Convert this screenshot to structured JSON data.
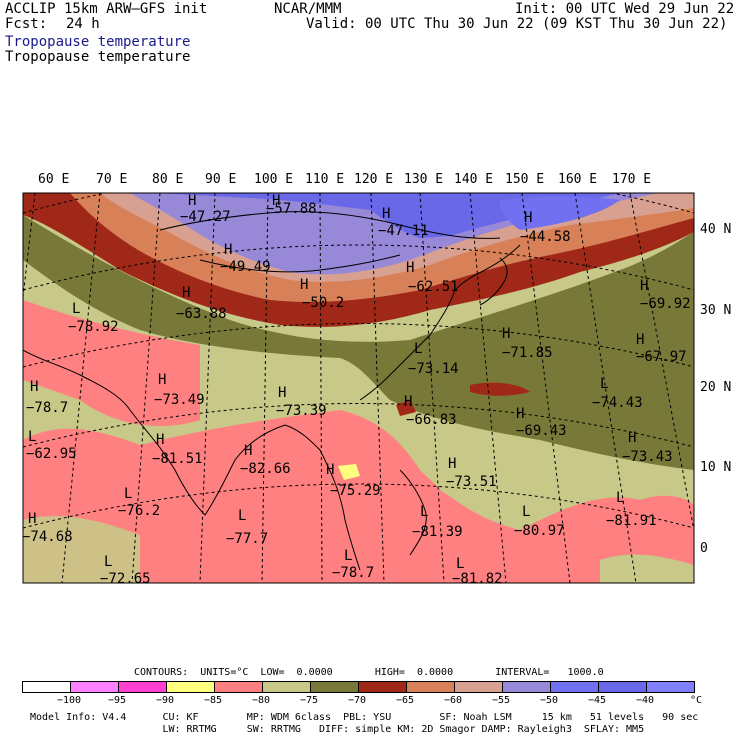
{
  "header": {
    "model": "ACCLIP 15km ARW–GFS init",
    "fcst_label": "Fcst:",
    "fcst_value": "24 h",
    "center": "NCAR/MMM",
    "init": "Init: 00 UTC Wed 29 Jun 22",
    "valid": "Valid: 00 UTC Thu 30 Jun 22 (09 KST Thu 30 Jun 22)",
    "field_title_blue": "Tropopause temperature",
    "field_title_black": "Tropopause temperature"
  },
  "colors": {
    "title_blue": "#1a1a8c",
    "bin_colors": [
      "#ffffff",
      "#ff80ff",
      "#ff40d0",
      "#ffff80",
      "#ff8080",
      "#c8c888",
      "#787838",
      "#a02818",
      "#d88058",
      "#d8a090",
      "#9888d8",
      "#7070f0",
      "#6868e8",
      "#8080ff"
    ]
  },
  "map": {
    "lon_labels": [
      "60 E",
      "70 E",
      "80 E",
      "90 E",
      "100 E",
      "110 E",
      "120 E",
      "130 E",
      "140 E",
      "150 E",
      "160 E",
      "170 E"
    ],
    "lat_labels": [
      "40 N",
      "30 N",
      "20 N",
      "10 N",
      "0"
    ],
    "extrema": [
      {
        "type": "H",
        "value": "−47.27"
      },
      {
        "type": "H",
        "value": "−57.88"
      },
      {
        "type": "H",
        "value": "−47.11"
      },
      {
        "type": "H",
        "value": "−44.58"
      },
      {
        "type": "H",
        "value": "−49.49"
      },
      {
        "type": "H",
        "value": "−50.2"
      },
      {
        "type": "H",
        "value": "−62.51"
      },
      {
        "type": "H",
        "value": "−63.88"
      },
      {
        "type": "H",
        "value": "−69.92"
      },
      {
        "type": "L",
        "value": "−78.92"
      },
      {
        "type": "H",
        "value": "−71.85"
      },
      {
        "type": "H",
        "value": "−67.97"
      },
      {
        "type": "L",
        "value": "−73.14"
      },
      {
        "type": "H",
        "value": "−78.7"
      },
      {
        "type": "H",
        "value": "−73.49"
      },
      {
        "type": "H",
        "value": "−73.39"
      },
      {
        "type": "H",
        "value": "−66.83"
      },
      {
        "type": "L",
        "value": "−74.43"
      },
      {
        "type": "H",
        "value": "−69.43"
      },
      {
        "type": "L",
        "value": "−62.95"
      },
      {
        "type": "H",
        "value": "−81.51"
      },
      {
        "type": "H",
        "value": "−82.66"
      },
      {
        "type": "H",
        "value": "−73.43"
      },
      {
        "type": "H",
        "value": "−75.29"
      },
      {
        "type": "H",
        "value": "−73.51"
      },
      {
        "type": "H",
        "value": "−74.68"
      },
      {
        "type": "L",
        "value": "−76.2"
      },
      {
        "type": "L",
        "value": "−77.7"
      },
      {
        "type": "L",
        "value": "−81.39"
      },
      {
        "type": "L",
        "value": "−80.97"
      },
      {
        "type": "L",
        "value": "−81.91"
      },
      {
        "type": "L",
        "value": "−72.65"
      },
      {
        "type": "L",
        "value": "−78.7"
      },
      {
        "type": "L",
        "value": "−81.82"
      }
    ]
  },
  "contours": {
    "text": "CONTOURS:  UNITS=°C  LOW=  0.0000       HIGH=  0.0000       INTERVAL=   1000.0"
  },
  "colorbar": {
    "labels": [
      "−100",
      "−95",
      "−90",
      "−85",
      "−80",
      "−75",
      "−70",
      "−65",
      "−60",
      "−55",
      "−50",
      "−45",
      "−40"
    ],
    "unit": "°C"
  },
  "footer": {
    "line1": "Model Info: V4.4      CU: KF        MP: WDM 6class  PBL: YSU        SF: Noah LSM     15 km   51 levels   90 sec",
    "line2": "                      LW: RRTMG     SW: RRTMG   DIFF: simple KM: 2D Smagor DAMP: Rayleigh3  SFLAY: MM5"
  }
}
